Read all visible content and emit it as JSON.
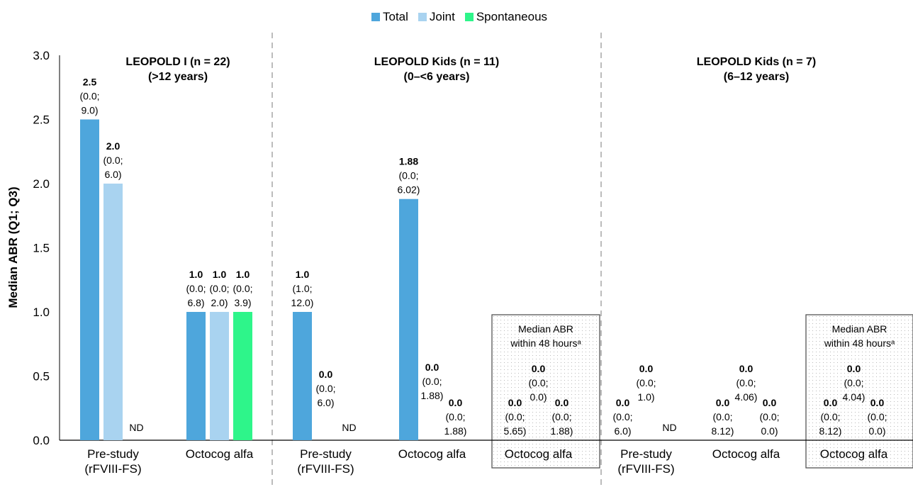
{
  "chart_data": {
    "type": "bar",
    "ylabel": "Median ABR (Q1; Q3)",
    "ylim": [
      0,
      3.0
    ],
    "yticks": [
      "0.0",
      "0.5",
      "1.0",
      "1.5",
      "2.0",
      "2.5",
      "3.0"
    ],
    "legend_position": "top-center",
    "series": [
      {
        "name": "Total",
        "color": "#4ea6dc"
      },
      {
        "name": "Joint",
        "color": "#a9d3f0"
      },
      {
        "name": "Spontaneous",
        "color": "#2ef58a"
      }
    ],
    "panels": [
      {
        "title": "LEOPOLD I (n = 22)",
        "subtitle": "(>12 years)",
        "groups": [
          {
            "label": [
              "Pre-study",
              "(rFVIII-FS)"
            ],
            "boxed": false,
            "bars": [
              {
                "series": "Total",
                "value": 2.5,
                "label": [
                  "2.5",
                  "(0.0;",
                  "9.0)"
                ]
              },
              {
                "series": "Joint",
                "value": 2.0,
                "label": [
                  "2.0",
                  "(0.0;",
                  "6.0)"
                ]
              },
              {
                "series": "Spontaneous",
                "value": null,
                "label": [
                  "ND"
                ]
              }
            ]
          },
          {
            "label": [
              "Octocog alfa"
            ],
            "boxed": false,
            "bars": [
              {
                "series": "Total",
                "value": 1.0,
                "label": [
                  "1.0",
                  "(0.0;",
                  "6.8)"
                ]
              },
              {
                "series": "Joint",
                "value": 1.0,
                "label": [
                  "1.0",
                  "(0.0;",
                  "2.0)"
                ]
              },
              {
                "series": "Spontaneous",
                "value": 1.0,
                "label": [
                  "1.0",
                  "(0.0;",
                  "3.9)"
                ]
              }
            ]
          }
        ]
      },
      {
        "title": "LEOPOLD Kids (n = 11)",
        "subtitle": "(0–<6 years)",
        "groups": [
          {
            "label": [
              "Pre-study",
              "(rFVIII-FS)"
            ],
            "boxed": false,
            "bars": [
              {
                "series": "Total",
                "value": 1.0,
                "label": [
                  "1.0",
                  "(1.0;",
                  "12.0)"
                ]
              },
              {
                "series": "Joint",
                "value": 0.0,
                "label": [
                  "0.0",
                  "(0.0;",
                  "6.0)"
                ]
              },
              {
                "series": "Spontaneous",
                "value": null,
                "label": [
                  "ND"
                ]
              }
            ]
          },
          {
            "label": [
              "Octocog alfa"
            ],
            "boxed": false,
            "bars": [
              {
                "series": "Total",
                "value": 1.88,
                "label": [
                  "1.88",
                  "(0.0;",
                  "6.02)"
                ]
              },
              {
                "series": "Joint",
                "value": 0.0,
                "label": [
                  "0.0",
                  "(0.0;",
                  "1.88)"
                ]
              },
              {
                "series": "Spontaneous",
                "value": 0.0,
                "label": [
                  "0.0",
                  "(0.0;",
                  "1.88)"
                ]
              }
            ]
          },
          {
            "label": [
              "Octocog alfa"
            ],
            "boxed": true,
            "box_title": [
              "Median ABR",
              "within 48 hoursᵃ"
            ],
            "bars": [
              {
                "series": "Total",
                "value": 0.0,
                "label": [
                  "0.0",
                  "(0.0;",
                  "5.65)"
                ]
              },
              {
                "series": "Joint",
                "value": 0.0,
                "label": [
                  "0.0",
                  "(0.0;",
                  "0.0)"
                ]
              },
              {
                "series": "Spontaneous",
                "value": 0.0,
                "label": [
                  "0.0",
                  "(0.0;",
                  "1.88)"
                ]
              }
            ]
          }
        ]
      },
      {
        "title": "LEOPOLD Kids (n = 7)",
        "subtitle": "(6–12 years)",
        "groups": [
          {
            "label": [
              "Pre-study",
              "(rFVIII-FS)"
            ],
            "boxed": false,
            "bars": [
              {
                "series": "Total",
                "value": 0.0,
                "label": [
                  "0.0",
                  "(0.0;",
                  "6.0)"
                ]
              },
              {
                "series": "Joint",
                "value": 0.0,
                "label": [
                  "0.0",
                  "(0.0;",
                  "1.0)"
                ]
              },
              {
                "series": "Spontaneous",
                "value": null,
                "label": [
                  "ND"
                ]
              }
            ]
          },
          {
            "label": [
              "Octocog alfa"
            ],
            "boxed": false,
            "bars": [
              {
                "series": "Total",
                "value": 0.0,
                "label": [
                  "0.0",
                  "(0.0;",
                  "8.12)"
                ]
              },
              {
                "series": "Joint",
                "value": 0.0,
                "label": [
                  "0.0",
                  "(0.0;",
                  "4.06)"
                ]
              },
              {
                "series": "Spontaneous",
                "value": 0.0,
                "label": [
                  "0.0",
                  "(0.0;",
                  "0.0)"
                ]
              }
            ]
          },
          {
            "label": [
              "Octocog alfa"
            ],
            "boxed": true,
            "box_title": [
              "Median ABR",
              "within 48 hoursᵃ"
            ],
            "bars": [
              {
                "series": "Total",
                "value": 0.0,
                "label": [
                  "0.0",
                  "(0.0;",
                  "8.12)"
                ]
              },
              {
                "series": "Joint",
                "value": 0.0,
                "label": [
                  "0.0",
                  "(0.0;",
                  "4.04)"
                ]
              },
              {
                "series": "Spontaneous",
                "value": 0.0,
                "label": [
                  "0.0",
                  "(0.0;",
                  "0.0)"
                ]
              }
            ]
          }
        ]
      }
    ]
  }
}
